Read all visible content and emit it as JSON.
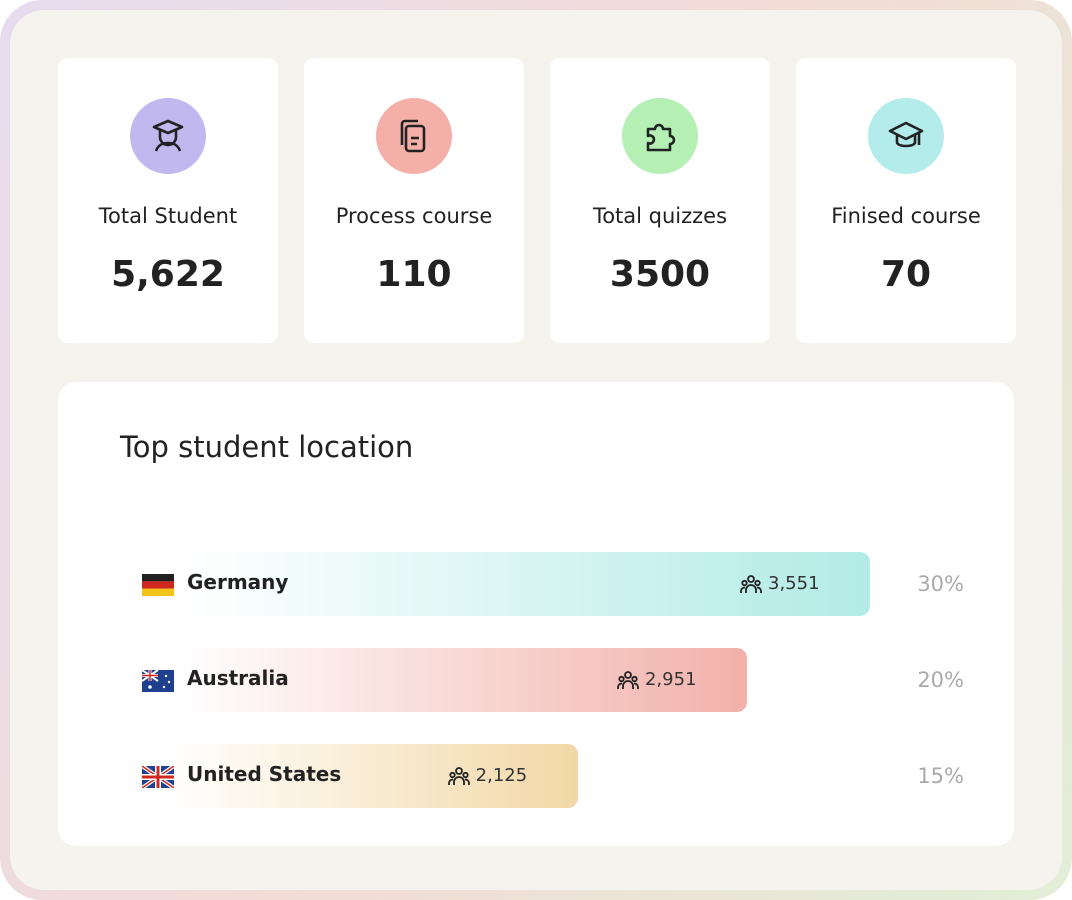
{
  "stats": [
    {
      "label": "Total Student",
      "value": "5,622",
      "color": "#c1b8ef"
    },
    {
      "label": "Process course",
      "value": "110",
      "color": "#f4b0a8"
    },
    {
      "label": "Total quizzes",
      "value": "3500",
      "color": "#b4efb4"
    },
    {
      "label": "Finised course",
      "value": "70",
      "color": "#b3ecea"
    }
  ],
  "locations": {
    "title": "Top student location",
    "rows": [
      {
        "name": "Germany",
        "count": {
          "value": 3551,
          "label": "3,551"
        },
        "percent": "30%",
        "color": "#b2ebe6"
      },
      {
        "name": "Australia",
        "count": {
          "value": 2951,
          "label": "2,951"
        },
        "percent": "20%",
        "color": "#f2b1aa"
      },
      {
        "name": "United States",
        "count": {
          "value": 2125,
          "label": "2,125"
        },
        "percent": "15%",
        "color": "#f2d8a6"
      }
    ]
  }
}
